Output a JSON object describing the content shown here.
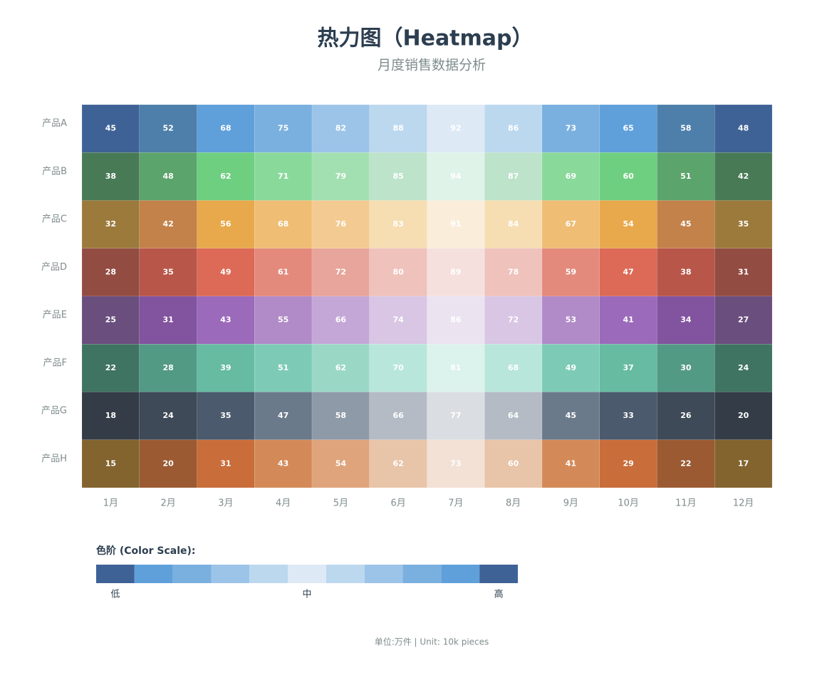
{
  "chart_data": {
    "type": "heatmap",
    "title": "热力图（Heatmap）",
    "subtitle": "月度销售数据分析",
    "categories": [
      "1月",
      "2月",
      "3月",
      "4月",
      "5月",
      "6月",
      "7月",
      "8月",
      "9月",
      "10月",
      "11月",
      "12月"
    ],
    "rows": [
      "产品A",
      "产品B",
      "产品C",
      "产品D",
      "产品E",
      "产品F",
      "产品G",
      "产品H"
    ],
    "values": [
      [
        45,
        52,
        68,
        75,
        82,
        88,
        92,
        86,
        73,
        65,
        58,
        48
      ],
      [
        38,
        48,
        62,
        71,
        79,
        85,
        94,
        87,
        69,
        60,
        51,
        42
      ],
      [
        32,
        42,
        56,
        68,
        76,
        83,
        91,
        84,
        67,
        54,
        45,
        35
      ],
      [
        28,
        35,
        49,
        61,
        72,
        80,
        89,
        78,
        59,
        47,
        38,
        31
      ],
      [
        25,
        31,
        43,
        55,
        66,
        74,
        86,
        72,
        53,
        41,
        34,
        27
      ],
      [
        22,
        28,
        39,
        51,
        62,
        70,
        81,
        68,
        49,
        37,
        30,
        24
      ],
      [
        18,
        24,
        35,
        47,
        58,
        66,
        77,
        64,
        45,
        33,
        26,
        20
      ],
      [
        15,
        20,
        31,
        43,
        54,
        62,
        73,
        60,
        41,
        29,
        22,
        17
      ]
    ],
    "colors": [
      [
        "#3f6296",
        "#4e7fab",
        "#5fa0da",
        "#7ab0df",
        "#9cc4e8",
        "#bcd8ef",
        "#dde9f5",
        "#bcd8ef",
        "#7ab0df",
        "#5fa0da",
        "#4e7fab",
        "#3f6296"
      ],
      [
        "#487a55",
        "#5ba46c",
        "#6fcf81",
        "#89d99b",
        "#a3e0b1",
        "#bde3cb",
        "#dff3e8",
        "#bde3cb",
        "#89d99b",
        "#6fcf81",
        "#5ba46c",
        "#487a55"
      ],
      [
        "#9c7a3c",
        "#c3824a",
        "#e8a94c",
        "#efbd74",
        "#f3cb92",
        "#f6ddb2",
        "#faeedb",
        "#f6ddb2",
        "#efbd74",
        "#e8a94c",
        "#c3824a",
        "#9c7a3c"
      ],
      [
        "#934c42",
        "#b9564a",
        "#dc6a56",
        "#e38a7d",
        "#e8a59b",
        "#efc2bc",
        "#f5e0de",
        "#efc2bc",
        "#e38a7d",
        "#dc6a56",
        "#b9564a",
        "#934c42"
      ],
      [
        "#6a4e7e",
        "#82539e",
        "#9b6abb",
        "#b18ac8",
        "#c4a7d6",
        "#d8c6e4",
        "#ebe3f0",
        "#d8c6e4",
        "#b18ac8",
        "#9b6abb",
        "#82539e",
        "#6a4e7e"
      ],
      [
        "#3f7362",
        "#539a85",
        "#66bba1",
        "#7dcbb6",
        "#9ad8c5",
        "#b8e6da",
        "#dcf2ec",
        "#b8e6da",
        "#7dcbb6",
        "#66bba1",
        "#539a85",
        "#3f7362"
      ],
      [
        "#343c47",
        "#3e4a57",
        "#4b5a6d",
        "#6b7a8b",
        "#8f9aa8",
        "#b5bbc5",
        "#dadee2",
        "#b5bbc5",
        "#6b7a8b",
        "#4b5a6d",
        "#3e4a57",
        "#343c47"
      ],
      [
        "#83642f",
        "#9b5a32",
        "#c96d3a",
        "#d48a58",
        "#dfa47b",
        "#e8c4a8",
        "#f3e1d5",
        "#e8c4a8",
        "#d48a58",
        "#c96d3a",
        "#9b5a32",
        "#83642f"
      ]
    ],
    "color_scale": {
      "title": "色阶 (Color Scale):",
      "colors": [
        "#3f6296",
        "#5fa0da",
        "#7ab0df",
        "#9cc4e8",
        "#bcd8ef",
        "#dde9f5",
        "#bcd8ef",
        "#9cc4e8",
        "#7ab0df",
        "#5fa0da",
        "#3f6296"
      ],
      "labels": [
        "低",
        "中",
        "高"
      ]
    },
    "footnote": "单位:万件 | Unit: 10k pieces"
  }
}
